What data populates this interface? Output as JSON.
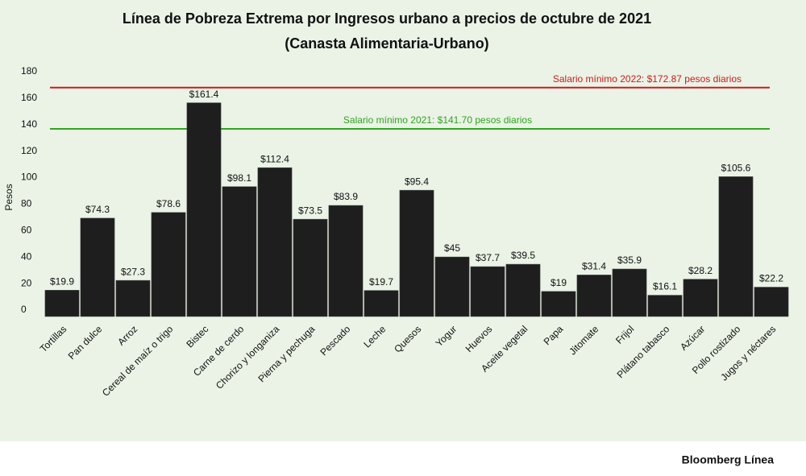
{
  "chart_data": {
    "type": "bar",
    "title": "Línea de Pobreza Extrema por Ingresos urbano a precios de octubre de 2021",
    "subtitle": "(Canasta Alimentaria-Urbano)",
    "y_label": "Pesos",
    "categories": [
      "Tortillas",
      "Pan dulce",
      "Arroz",
      "Cereal de maíz o trigo",
      "Bistec",
      "Carne de cerdo",
      "Chorizo y longaniza",
      "Pierna y pechuga",
      "Pescado",
      "Leche",
      "Quesos",
      "Yogur",
      "Huevos",
      "Aceite vegetal",
      "Papa",
      "Jitomate",
      "Frijol",
      "Plátano tabasco",
      "Azúcar",
      "Pollo rostizado",
      "Jugos y néctares"
    ],
    "values": [
      19.9,
      74.3,
      27.3,
      78.6,
      161.4,
      98.1,
      112.4,
      73.5,
      83.9,
      19.7,
      95.4,
      45,
      37.7,
      39.5,
      19,
      31.4,
      35.9,
      16.1,
      28.2,
      105.6,
      22.2
    ],
    "value_labels": [
      "$19.9",
      "$74.3",
      "$27.3",
      "$78.6",
      "$161.4",
      "$98.1",
      "$112.4",
      "$73.5",
      "$83.9",
      "$19.7",
      "$95.4",
      "$45",
      "$37.7",
      "$39.5",
      "$19",
      "$31.4",
      "$35.9",
      "$16.1",
      "$28.2",
      "$105.6",
      "$22.2"
    ],
    "color": "#1e1e1e",
    "ylim": [
      0,
      180
    ],
    "yticks": [
      0,
      20,
      40,
      60,
      80,
      100,
      120,
      140,
      160,
      180
    ],
    "grid": false,
    "reference_lines": [
      {
        "value": 172.87,
        "label": "Salario mínimo 2022: $172.87 pesos diarios",
        "color": "#d0191b"
      },
      {
        "value": 141.7,
        "label": "Salario mínimo 2021: $141.70 pesos diarios",
        "color": "#2ea51e"
      }
    ],
    "brand": "Bloomberg Línea"
  }
}
